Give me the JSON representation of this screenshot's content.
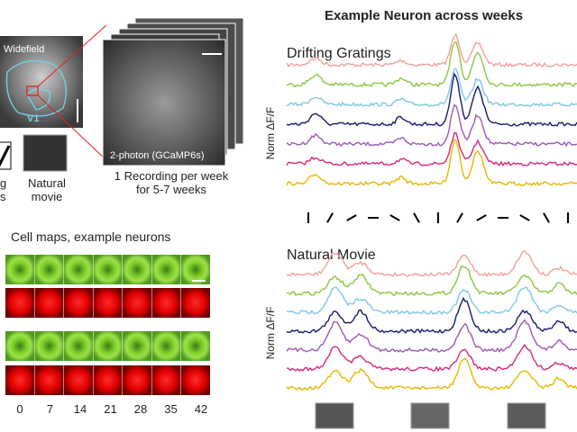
{
  "left": {
    "widefield_label": "Widefield",
    "area_label": "V1",
    "twophoton_label": "2-photon (GCaMP6s)",
    "recording_note": [
      "1 Recording per week",
      "for 5-7 weeks"
    ],
    "stimuli": [
      {
        "label": [
          "g",
          "s"
        ]
      },
      {
        "label": [
          "Natural",
          "movie"
        ]
      }
    ]
  },
  "cell_maps": {
    "title": "Cell maps, example neurons",
    "days": [
      0,
      7,
      14,
      21,
      28,
      35,
      42
    ]
  },
  "right": {
    "title": "Example Neuron across weeks",
    "panels": [
      {
        "title": "Drifting Gratings",
        "ylabel": "Norm ΔF/F"
      },
      {
        "title": "Natural Movie",
        "ylabel": "Norm ΔF/F"
      }
    ],
    "trace_colors": [
      "#f0a0a0",
      "#8cc63f",
      "#7ec8e3",
      "#1a1a6e",
      "#9b59b6",
      "#d6287a",
      "#e6b800"
    ]
  }
}
